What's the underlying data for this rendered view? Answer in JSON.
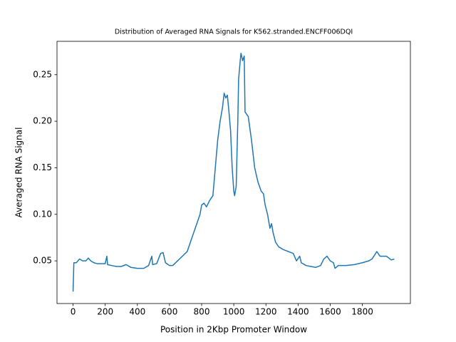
{
  "chart_data": {
    "type": "line",
    "title": "Distribution of Averaged RNA Signals for K562.stranded.ENCFF006DQI",
    "x_label": "Position in 2Kbp Promoter Window",
    "y_label": "Averaged RNA Signal",
    "color": "#1f77b4",
    "x": [
      0,
      5,
      20,
      30,
      40,
      60,
      80,
      95,
      110,
      130,
      150,
      200,
      210,
      215,
      240,
      270,
      300,
      330,
      360,
      400,
      440,
      470,
      480,
      490,
      495,
      520,
      545,
      560,
      575,
      600,
      620,
      650,
      680,
      710,
      730,
      750,
      770,
      790,
      800,
      815,
      830,
      850,
      870,
      880,
      890,
      900,
      915,
      930,
      940,
      950,
      960,
      970,
      980,
      990,
      1000,
      1005,
      1015,
      1025,
      1030,
      1040,
      1045,
      1055,
      1065,
      1070,
      1090,
      1110,
      1130,
      1150,
      1170,
      1185,
      1195,
      1210,
      1225,
      1235,
      1245,
      1260,
      1280,
      1310,
      1340,
      1370,
      1390,
      1410,
      1420,
      1450,
      1480,
      1510,
      1540,
      1560,
      1580,
      1600,
      1620,
      1630,
      1650,
      1700,
      1750,
      1800,
      1840,
      1860,
      1890,
      1910,
      1930,
      1950,
      1980,
      1999
    ],
    "values": [
      0.017,
      0.048,
      0.048,
      0.05,
      0.052,
      0.05,
      0.05,
      0.053,
      0.05,
      0.048,
      0.047,
      0.047,
      0.055,
      0.046,
      0.045,
      0.044,
      0.044,
      0.046,
      0.043,
      0.042,
      0.042,
      0.045,
      0.05,
      0.055,
      0.046,
      0.047,
      0.058,
      0.059,
      0.048,
      0.045,
      0.045,
      0.05,
      0.055,
      0.06,
      0.07,
      0.08,
      0.09,
      0.1,
      0.11,
      0.112,
      0.108,
      0.115,
      0.12,
      0.14,
      0.16,
      0.18,
      0.2,
      0.215,
      0.23,
      0.225,
      0.228,
      0.21,
      0.19,
      0.15,
      0.125,
      0.12,
      0.13,
      0.2,
      0.245,
      0.265,
      0.273,
      0.265,
      0.27,
      0.21,
      0.205,
      0.18,
      0.15,
      0.135,
      0.125,
      0.122,
      0.11,
      0.1,
      0.085,
      0.09,
      0.08,
      0.07,
      0.065,
      0.062,
      0.06,
      0.058,
      0.05,
      0.055,
      0.048,
      0.045,
      0.044,
      0.043,
      0.045,
      0.052,
      0.055,
      0.05,
      0.048,
      0.042,
      0.045,
      0.045,
      0.046,
      0.048,
      0.05,
      0.052,
      0.06,
      0.055,
      0.055,
      0.055,
      0.051,
      0.052
    ],
    "xlim": [
      -99.95,
      2098.9
    ],
    "ylim": [
      0.0042,
      0.2858
    ],
    "xticks": [
      0,
      200,
      400,
      600,
      800,
      1000,
      1200,
      1400,
      1600,
      1800
    ],
    "yticks": [
      0.05,
      {
        "value": 0.1,
        "label": "0.10"
      },
      0.15,
      {
        "value": 0.2,
        "label": "0.20"
      },
      0.25
    ]
  }
}
